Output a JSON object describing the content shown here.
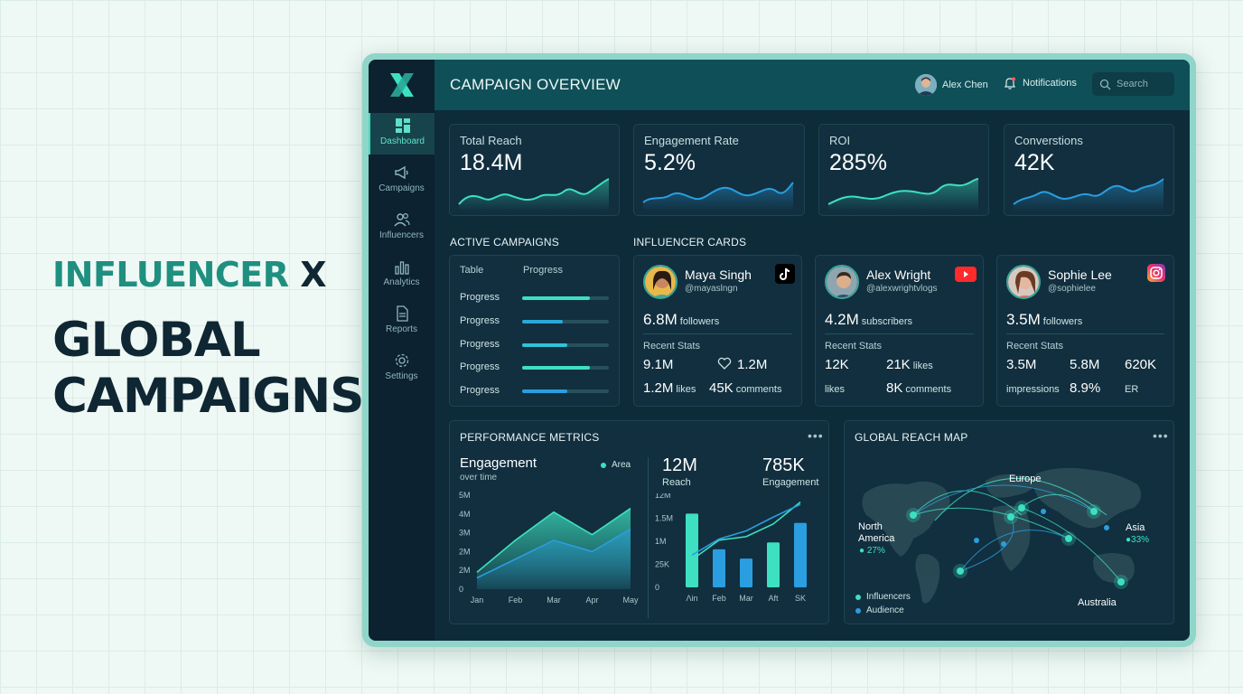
{
  "hero": {
    "brand": "INFLUENCER",
    "brand_x": "X",
    "line1": "GLOBAL",
    "line2": "CAMPAIGNS"
  },
  "sidebar": {
    "items": [
      {
        "label": "Dashboard",
        "icon": "dashboard-icon",
        "active": true
      },
      {
        "label": "Campaigns",
        "icon": "megaphone-icon"
      },
      {
        "label": "Influencers",
        "icon": "users-icon"
      },
      {
        "label": "Analytics",
        "icon": "bar-chart-icon"
      },
      {
        "label": "Reports",
        "icon": "document-icon"
      },
      {
        "label": "Settings",
        "icon": "gear-icon"
      }
    ]
  },
  "header": {
    "title": "CAMPAIGN OVERVIEW",
    "user": "Alex Chen",
    "notifications": "Notifications",
    "search_placeholder": "Search"
  },
  "kpis": [
    {
      "label": "Total Reach",
      "value": "18.4M"
    },
    {
      "label": "Engagement Rate",
      "value": "5.2%"
    },
    {
      "label": "ROI",
      "value": "285%"
    },
    {
      "label": "Converstions",
      "value": "42K"
    }
  ],
  "active_campaigns": {
    "title": "ACTIVE CAMPAIGNS",
    "col1": "Table",
    "col2": "Progress",
    "rows": [
      {
        "label": "Progress",
        "progress": 0.78,
        "color": "#3de0c0"
      },
      {
        "label": "Progress",
        "progress": 0.47,
        "color": "#2aa8d8"
      },
      {
        "label": "Progress",
        "progress": 0.52,
        "color": "#2fc4d8"
      },
      {
        "label": "Progress",
        "progress": 0.78,
        "color": "#3de0c0"
      },
      {
        "label": "Progress",
        "progress": 0.52,
        "color": "#2a9ee0"
      }
    ]
  },
  "influencers": {
    "title": "INFLUENCER CARDS",
    "recent_label": "Recent Stats",
    "cards": [
      {
        "name": "Maya Singh",
        "handle": "@mayaslngn",
        "platform": "tiktok-icon",
        "followers": "6.8M",
        "followers_unit": "followers",
        "s1": "9.1M",
        "s2": "1.2M",
        "s3": "1.2M",
        "s3_unit": "likes",
        "s4": "45K",
        "s4_unit": "comments"
      },
      {
        "name": "Alex Wright",
        "handle": "@alexwrightvlogs",
        "platform": "youtube-icon",
        "followers": "4.2M",
        "followers_unit": "subscribers",
        "s1": "12K",
        "s2": "21K",
        "s2_unit": "likes",
        "s3_unit": "likes",
        "s4": "8K",
        "s4_unit": "comments"
      },
      {
        "name": "Sophie Lee",
        "handle": "@sophielee",
        "platform": "instagram-icon",
        "followers": "3.5M",
        "followers_unit": "followers",
        "s1": "3.5M",
        "s2": "5.8M",
        "s5": "620K",
        "s3_unit": "impressions",
        "s4": "8.9%",
        "s6": "ER"
      }
    ]
  },
  "performance": {
    "title": "PERFORMANCE METRICS",
    "chart_title": "Engagement",
    "chart_subtitle": "over time",
    "legend": "Area",
    "reach_value": "12M",
    "reach_label": "Reach",
    "eng_value": "785K",
    "eng_label": "Engagement"
  },
  "map": {
    "title": "GLOBAL REACH MAP",
    "europe": "Europe",
    "north": "North",
    "america": "America",
    "na_pct": "27%",
    "asia": "Asia",
    "asia_pct": "33%",
    "australia": "Australia",
    "legend1": "Influencers",
    "legend2": "Audience"
  },
  "chart_data": [
    {
      "type": "area",
      "title": "Engagement",
      "subtitle": "over time",
      "categories": [
        "Jan",
        "Feb",
        "Mar",
        "Apr",
        "May"
      ],
      "y_ticks": [
        "0",
        "2M",
        "2M",
        "3M",
        "4M",
        "5M"
      ],
      "ylim": [
        0,
        5
      ],
      "series": [
        {
          "name": "Area",
          "values": [
            0.9,
            2.6,
            4.1,
            2.9,
            4.3
          ],
          "color": "#3de0c0"
        },
        {
          "values": [
            0.6,
            1.6,
            2.6,
            2.0,
            3.2
          ],
          "color": "#2a9ee0"
        }
      ]
    },
    {
      "type": "bar",
      "categories": [
        "Λin",
        "Feb",
        "Mar",
        "Aft",
        "SK"
      ],
      "y_ticks": [
        "0",
        "25K",
        "1M",
        "1.5M",
        "12M"
      ],
      "ylim": [
        0,
        4
      ],
      "series": [
        {
          "values": [
            3.2,
            1.65,
            1.25,
            1.95,
            2.8
          ],
          "colors": [
            "#3de0c0",
            "#2a9ee0",
            "#2a9ee0",
            "#3de0c0",
            "#2a9ee0"
          ]
        }
      ],
      "lines": [
        {
          "values": [
            1.2,
            2.05,
            2.2,
            2.75,
            3.7
          ],
          "color": "#3de0c0"
        },
        {
          "values": [
            1.4,
            2.1,
            2.45,
            3.05,
            3.6
          ],
          "color": "#2a9ee0"
        }
      ]
    }
  ]
}
